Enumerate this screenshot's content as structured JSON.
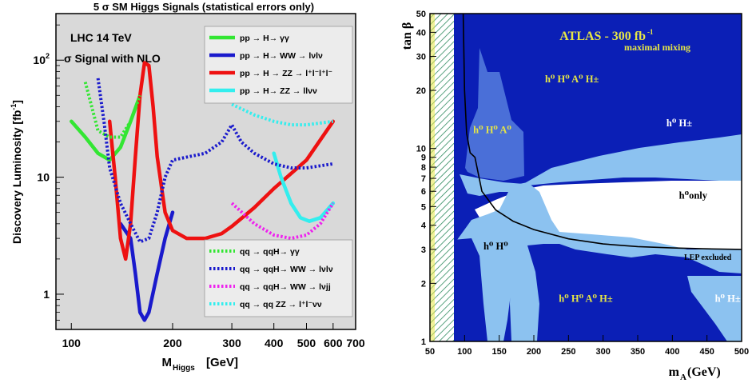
{
  "left_chart": {
    "title": "5 σ SM Higgs Signals (statistical errors only)",
    "info_line1": "LHC 14 TeV",
    "info_line2": "σ Signal with NLO",
    "xlabel_main": "M",
    "xlabel_sub": "Higgs",
    "xlabel_unit": " [GeV]",
    "ylabel": "Discovery Luminosity [fb",
    "ylabel_sup": "-1",
    "ylabel_end": "]",
    "x_ticks": [
      {
        "v": 100,
        "label": "100"
      },
      {
        "v": 200,
        "label": "200"
      },
      {
        "v": 300,
        "label": "300"
      },
      {
        "v": 400,
        "label": "400"
      },
      {
        "v": 500,
        "label": "500"
      },
      {
        "v": 600,
        "label": "600"
      },
      {
        "v": 700,
        "label": "700"
      }
    ],
    "y_ticks": [
      {
        "v": 1,
        "label": "1"
      },
      {
        "v": 10,
        "label": "10"
      },
      {
        "v": 100,
        "label": "10",
        "sup": "2"
      }
    ],
    "colors": {
      "green": "#33e633",
      "blue": "#1a1acc",
      "red": "#ee1111",
      "cyan": "#33eeee",
      "magenta": "#ee22ee",
      "gray": "#d9d9d9"
    },
    "legend_top": [
      {
        "key": "gamgam",
        "label": "pp → H→ γγ",
        "color": "#33e633",
        "dash": false
      },
      {
        "key": "ww",
        "label": "pp → H→ WW → lνlν",
        "color": "#1a1acc",
        "dash": false
      },
      {
        "key": "zz4l",
        "label": "pp → H → ZZ → l⁺l⁻l⁺l⁻",
        "color": "#ee1111",
        "dash": false
      },
      {
        "key": "zzllnn",
        "label": "pp → H→ ZZ → llνν",
        "color": "#33eeee",
        "dash": false
      }
    ],
    "legend_bottom": [
      {
        "key": "vbf_gamgam",
        "label": "qq → qqH→ γγ",
        "color": "#33e633",
        "dash": true
      },
      {
        "key": "vbf_ww",
        "label": "qq → qqH→ WW → lνlν",
        "color": "#1a1acc",
        "dash": true
      },
      {
        "key": "vbf_wwjj",
        "label": "qq → qqH→ WW → lνjj",
        "color": "#ee22ee",
        "dash": true
      },
      {
        "key": "vbf_zz",
        "label": "qq → qq ZZ → l⁺l⁻νν",
        "color": "#33eeee",
        "dash": true
      }
    ],
    "chart_data": {
      "type": "line",
      "x_scale": "log",
      "y_scale": "log",
      "xlim": [
        90,
        700
      ],
      "ylim": [
        0.5,
        250
      ],
      "xlabel": "MHiggs [GeV]",
      "ylabel": "Discovery Luminosity [fb-1]",
      "series": [
        {
          "name": "pp → H→ γγ",
          "style": "solid",
          "color": "#33e633",
          "points": [
            [
              100,
              30
            ],
            [
              110,
              22
            ],
            [
              120,
              16
            ],
            [
              130,
              14
            ],
            [
              140,
              18
            ],
            [
              150,
              30
            ],
            [
              160,
              50
            ]
          ]
        },
        {
          "name": "pp → H→ WW → lνlν",
          "style": "solid",
          "color": "#1a1acc",
          "points": [
            [
              140,
              4
            ],
            [
              150,
              3
            ],
            [
              155,
              1.5
            ],
            [
              160,
              0.7
            ],
            [
              165,
              0.6
            ],
            [
              170,
              0.7
            ],
            [
              180,
              1.5
            ],
            [
              190,
              3
            ],
            [
              200,
              5
            ]
          ]
        },
        {
          "name": "pp → H → ZZ → l⁺l⁻l⁺l⁻",
          "style": "solid",
          "color": "#ee1111",
          "points": [
            [
              130,
              30
            ],
            [
              135,
              10
            ],
            [
              140,
              3
            ],
            [
              145,
              2
            ],
            [
              150,
              4
            ],
            [
              155,
              15
            ],
            [
              160,
              50
            ],
            [
              165,
              95
            ],
            [
              170,
              90
            ],
            [
              175,
              40
            ],
            [
              180,
              15
            ],
            [
              190,
              5
            ],
            [
              200,
              3.5
            ],
            [
              220,
              3
            ],
            [
              250,
              3
            ],
            [
              280,
              3.3
            ],
            [
              300,
              3.8
            ],
            [
              350,
              5.5
            ],
            [
              400,
              8
            ],
            [
              500,
              14
            ],
            [
              600,
              30
            ]
          ]
        },
        {
          "name": "pp → H→ ZZ → llνν",
          "style": "solid",
          "color": "#33eeee",
          "points": [
            [
              400,
              16
            ],
            [
              420,
              10
            ],
            [
              450,
              6
            ],
            [
              480,
              4.5
            ],
            [
              510,
              4.2
            ],
            [
              550,
              4.5
            ],
            [
              600,
              6
            ]
          ]
        },
        {
          "name": "qq → qqH→ γγ",
          "style": "dashed",
          "color": "#33e633",
          "points": [
            [
              110,
              65
            ],
            [
              115,
              40
            ],
            [
              120,
              25
            ],
            [
              130,
              22
            ],
            [
              140,
              22
            ],
            [
              150,
              30
            ],
            [
              160,
              50
            ]
          ]
        },
        {
          "name": "qq → qqH→ WW → lνlν",
          "style": "dashed",
          "color": "#1a1acc",
          "points": [
            [
              120,
              70
            ],
            [
              125,
              30
            ],
            [
              130,
              12
            ],
            [
              140,
              6
            ],
            [
              150,
              4
            ],
            [
              160,
              2.8
            ],
            [
              170,
              3
            ],
            [
              180,
              5
            ],
            [
              190,
              10
            ],
            [
              200,
              14
            ],
            [
              250,
              16
            ],
            [
              280,
              20
            ],
            [
              300,
              28
            ],
            [
              320,
              20
            ],
            [
              350,
              16
            ],
            [
              400,
              13
            ],
            [
              450,
              12
            ],
            [
              500,
              12
            ],
            [
              600,
              13
            ]
          ]
        },
        {
          "name": "qq → qqH→ WW → lνjj",
          "style": "dashed",
          "color": "#ee22ee",
          "points": [
            [
              300,
              6
            ],
            [
              350,
              4
            ],
            [
              400,
              3.2
            ],
            [
              450,
              3
            ],
            [
              500,
              3.2
            ],
            [
              550,
              4
            ],
            [
              600,
              6
            ]
          ]
        },
        {
          "name": "qq → qq ZZ → l⁺l⁻νν",
          "style": "dashed",
          "color": "#33eeee",
          "points": [
            [
              300,
              42
            ],
            [
              350,
              34
            ],
            [
              400,
              30
            ],
            [
              450,
              28
            ],
            [
              500,
              28
            ],
            [
              550,
              29
            ],
            [
              600,
              30
            ]
          ]
        }
      ]
    }
  },
  "right_chart": {
    "title": "ATLAS - 300 fb",
    "title_sup": "-1",
    "subtitle": "maximal mixing",
    "ylabel": "tan β",
    "xlabel_main": "m",
    "xlabel_sub": "A",
    "xlabel_unit": " (GeV)",
    "lep_label": "LEP excluded",
    "colors": {
      "dark": "#0b1fb6",
      "medium": "#4a6fd8",
      "light": "#8cc2f0",
      "white": "#ffffff",
      "hatch": "#2d8a5e",
      "yellow": "#e6e646"
    },
    "x_ticks": [
      "50",
      "100",
      "150",
      "200",
      "250",
      "300",
      "350",
      "400",
      "450",
      "500"
    ],
    "x_tick_values": [
      50,
      100,
      150,
      200,
      250,
      300,
      350,
      400,
      450,
      500
    ],
    "y_ticks": [
      {
        "v": 1,
        "label": "1"
      },
      {
        "v": 2,
        "label": "2"
      },
      {
        "v": 3,
        "label": "3"
      },
      {
        "v": 4,
        "label": "4"
      },
      {
        "v": 5,
        "label": "5"
      },
      {
        "v": 6,
        "label": "6"
      },
      {
        "v": 7,
        "label": "7"
      },
      {
        "v": 8,
        "label": "8"
      },
      {
        "v": 9,
        "label": "9"
      },
      {
        "v": 10,
        "label": "10"
      },
      {
        "v": 20,
        "label": "20"
      },
      {
        "v": 30,
        "label": "30"
      },
      {
        "v": 40,
        "label": "40"
      },
      {
        "v": 50,
        "label": "50"
      }
    ],
    "region_labels": [
      {
        "text": "h⁰ H⁰ A⁰ H±",
        "x": 255,
        "y": 22,
        "color": "#e6e646"
      },
      {
        "text": "h⁰ H⁰ A⁰",
        "x": 140,
        "y": 12,
        "color": "#e6e646"
      },
      {
        "text": "h⁰ H±",
        "x": 410,
        "y": 13,
        "color": "#ffffff"
      },
      {
        "text": "h⁰only",
        "x": 430,
        "y": 5.5,
        "color": "#000000"
      },
      {
        "text": "h⁰ H⁰",
        "x": 145,
        "y": 3,
        "color": "#000000"
      },
      {
        "text": "h⁰ H⁰ A⁰ H±",
        "x": 275,
        "y": 1.6,
        "color": "#e6e646"
      },
      {
        "text": "h⁰ H±",
        "x": 480,
        "y": 1.6,
        "color": "#ffffff"
      }
    ],
    "chart_data": {
      "type": "area",
      "x_scale": "linear",
      "y_scale": "log",
      "xlim": [
        50,
        500
      ],
      "ylim": [
        1,
        50
      ],
      "xlabel": "mA (GeV)",
      "ylabel": "tan β",
      "lep_exclusion_curve": [
        [
          98,
          50
        ],
        [
          100,
          20
        ],
        [
          103,
          12
        ],
        [
          108,
          9.5
        ],
        [
          115,
          9
        ],
        [
          125,
          6
        ],
        [
          145,
          4.8
        ],
        [
          170,
          4.2
        ],
        [
          200,
          3.8
        ],
        [
          250,
          3.4
        ],
        [
          300,
          3.2
        ],
        [
          350,
          3.1
        ],
        [
          400,
          3.05
        ],
        [
          450,
          3.02
        ],
        [
          500,
          3.0
        ]
      ]
    }
  }
}
